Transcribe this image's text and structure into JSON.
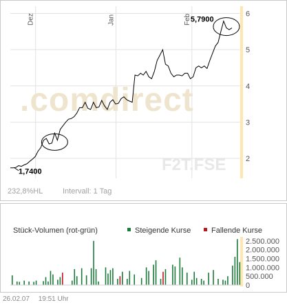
{
  "chart_data": [
    {
      "type": "line",
      "series": [
        {
          "values": [
            1.74,
            1.74,
            1.75,
            1.8,
            1.78,
            1.82,
            1.85,
            1.92,
            1.98,
            2.05,
            2.2,
            2.3,
            2.5,
            2.55,
            2.4,
            2.42,
            2.7,
            2.5,
            2.8,
            2.9,
            3.0,
            3.08,
            3.1,
            3.15,
            3.25,
            3.4,
            3.4,
            3.55,
            3.38,
            3.35,
            3.55,
            3.4,
            3.42,
            3.6,
            3.45,
            3.35,
            3.55,
            3.62,
            3.5,
            3.52,
            3.65,
            3.7,
            3.62,
            3.58,
            3.55,
            4.3,
            4.28,
            4.35,
            4.3,
            4.4,
            4.25,
            4.2,
            4.4,
            4.7,
            4.85,
            5.0,
            4.6,
            4.55,
            4.35,
            4.25,
            4.3,
            4.3,
            4.28,
            4.35,
            4.35,
            4.2,
            4.25,
            4.5,
            4.55,
            4.5,
            4.55,
            4.48,
            4.7,
            4.9,
            5.1,
            5.2,
            5.5,
            5.79,
            5.6,
            5.55,
            5.6
          ]
        }
      ],
      "x_ticks": [
        "Dez",
        "Jan",
        "Feb"
      ],
      "y_ticks": [
        "2",
        "3",
        "4",
        "5",
        "6"
      ],
      "ylim": [
        1.45,
        6.2
      ],
      "labels": {
        "low": "1,7400",
        "high": "5,7900"
      },
      "info_left": "232,8%HL",
      "info_right": "Intervall: 1 Tag",
      "watermark": ".comdirect",
      "symbol": "F2T.FSE",
      "colors": {
        "line": "#000000",
        "axis_bar": "#ffe6b0",
        "grid": "#e2e2e2"
      }
    },
    {
      "type": "bar",
      "title": "Stück-Volumen (rot-grün)",
      "legend": [
        {
          "name": "Steigende Kurse",
          "color": "#1a7a3a"
        },
        {
          "name": "Fallende Kurse",
          "color": "#c0141c"
        }
      ],
      "y_ticks": [
        "0",
        "500.000",
        "1.000.000",
        "1.500.000",
        "2.000.000",
        "2.500.000"
      ],
      "ylim": [
        0,
        2650000
      ],
      "values": [
        550000,
        0,
        200000,
        180000,
        0,
        250000,
        0,
        200000,
        0,
        180000,
        250000,
        0,
        0,
        220000,
        450000,
        200000,
        800000,
        600000,
        0,
        300000,
        450000,
        700000,
        0,
        0,
        0,
        250000,
        900000,
        500000,
        0,
        950000,
        0,
        550000,
        0,
        950000,
        2500000,
        900000,
        200000,
        0,
        0,
        1000000,
        650000,
        850000,
        950000,
        0,
        350000,
        500000,
        750000,
        0,
        350000,
        800000,
        0,
        600000,
        0,
        0,
        400000,
        0,
        1000000,
        800000,
        0,
        1150000,
        1400000,
        0,
        350000,
        750000,
        900000,
        0,
        0,
        1150000,
        1050000,
        0,
        1550000,
        1000000,
        0,
        700000,
        0,
        300000,
        750000,
        400000,
        0,
        350000,
        250000,
        0,
        700000,
        0,
        850000,
        0,
        350000,
        0,
        300000,
        250000,
        500000,
        0,
        1100000,
        1600000,
        2600000,
        1300000
      ],
      "directions": "ggggggrggggggggggggggrgggggggggggggggggggggggrgggggggggggggggggrggggggggggrgggggggggggggggggggggg",
      "colors": {
        "up": "#1a7a3a",
        "down": "#c0141c"
      }
    }
  ],
  "footer": {
    "date": "26.02.07",
    "time": "19:51 Uhr"
  }
}
